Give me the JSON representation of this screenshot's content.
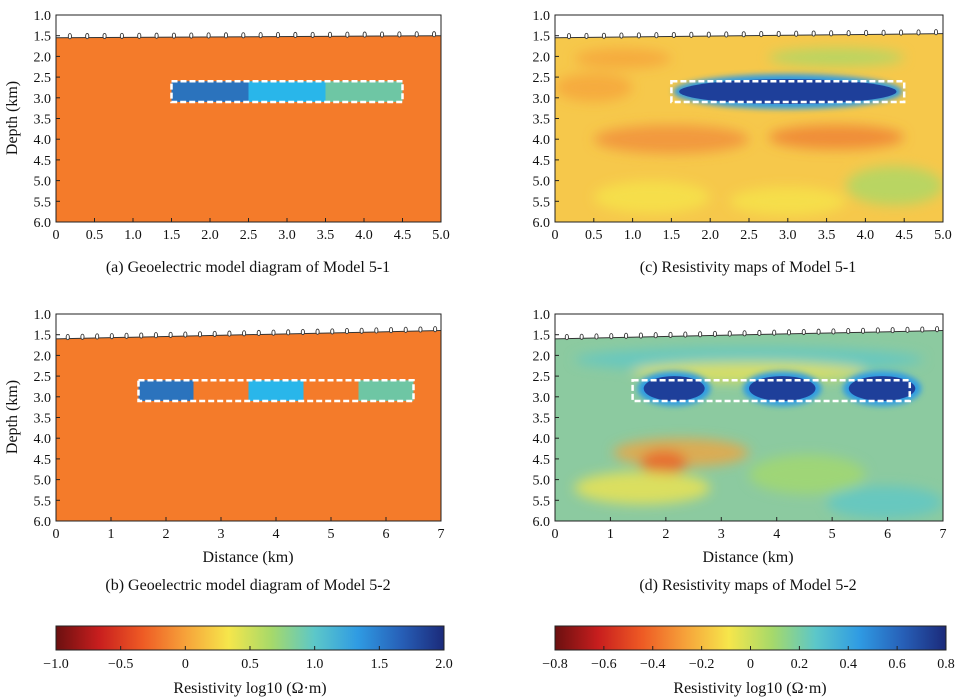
{
  "figure": {
    "charts": [
      {
        "id": "a",
        "type": "heatmap",
        "caption": "(a) Geoelectric model diagram of Model 5-1",
        "ylabel": "Depth (km)",
        "xlabel": "",
        "xlim": [
          0,
          5.0
        ],
        "ylim": [
          1.0,
          6.0
        ],
        "xticks": [
          "0",
          "0.5",
          "1.0",
          "1.5",
          "2.0",
          "2.5",
          "3.0",
          "3.5",
          "4.0",
          "4.5",
          "5.0"
        ],
        "yticks": [
          "1.0",
          "1.5",
          "2.0",
          "2.5",
          "3.0",
          "3.5",
          "4.0",
          "4.5",
          "5.0",
          "5.5",
          "6.0"
        ],
        "background_color": "#f47b2a",
        "surface_depth": [
          1.55,
          1.5
        ],
        "blocks": [
          {
            "x": [
              1.5,
              2.5
            ],
            "depth": [
              2.6,
              3.1
            ],
            "color": "#2b73bd"
          },
          {
            "x": [
              2.5,
              3.5
            ],
            "depth": [
              2.6,
              3.1
            ],
            "color": "#29b6ea"
          },
          {
            "x": [
              3.5,
              4.5
            ],
            "depth": [
              2.6,
              3.1
            ],
            "color": "#6ec6a4"
          }
        ],
        "dashed_box": {
          "x": [
            1.5,
            4.5
          ],
          "depth": [
            2.6,
            3.1
          ]
        }
      },
      {
        "id": "b",
        "type": "heatmap",
        "caption": "(b) Geoelectric model diagram of Model 5-2",
        "ylabel": "Depth (km)",
        "xlabel": "Distance (km)",
        "xlim": [
          0,
          7
        ],
        "ylim": [
          1.0,
          6.0
        ],
        "xticks": [
          "0",
          "1",
          "2",
          "3",
          "4",
          "5",
          "6",
          "7"
        ],
        "yticks": [
          "1.0",
          "1.5",
          "2.0",
          "2.5",
          "3.0",
          "3.5",
          "4.0",
          "4.5",
          "5.0",
          "5.5",
          "6.0"
        ],
        "background_color": "#f47b2a",
        "surface_depth": [
          1.6,
          1.4
        ],
        "blocks": [
          {
            "x": [
              1.5,
              2.5
            ],
            "depth": [
              2.6,
              3.1
            ],
            "color": "#2b73bd"
          },
          {
            "x": [
              3.5,
              4.5
            ],
            "depth": [
              2.6,
              3.1
            ],
            "color": "#29b6ea"
          },
          {
            "x": [
              5.5,
              6.5
            ],
            "depth": [
              2.6,
              3.1
            ],
            "color": "#6ec6a4"
          }
        ],
        "dashed_box": {
          "x": [
            1.5,
            6.5
          ],
          "depth": [
            2.6,
            3.1
          ]
        }
      },
      {
        "id": "c",
        "type": "heatmap",
        "caption": "(c) Resistivity maps of Model 5-1",
        "ylabel": "",
        "xlabel": "",
        "xlim": [
          0,
          5.0
        ],
        "ylim": [
          1.0,
          6.0
        ],
        "xticks": [
          "0",
          "0.5",
          "1.0",
          "1.5",
          "2.0",
          "2.5",
          "3.0",
          "3.5",
          "4.0",
          "4.5",
          "5.0"
        ],
        "yticks": [
          "1.0",
          "1.5",
          "2.0",
          "2.5",
          "3.0",
          "3.5",
          "4.0",
          "4.5",
          "5.0",
          "5.5",
          "6.0"
        ],
        "background_color": "#f6c84b",
        "surface_depth": [
          1.55,
          1.45
        ],
        "anomalies": [
          {
            "x": [
              1.6,
              4.4
            ],
            "depth": [
              2.55,
              3.15
            ],
            "color": "#1e3f9a"
          }
        ],
        "dashed_box": {
          "x": [
            1.5,
            4.5
          ],
          "depth": [
            2.6,
            3.1
          ]
        }
      },
      {
        "id": "d",
        "type": "heatmap",
        "caption": "(d) Resistivity maps of Model 5-2",
        "ylabel": "",
        "xlabel": "Distance (km)",
        "xlim": [
          0,
          7
        ],
        "ylim": [
          1.0,
          6.0
        ],
        "xticks": [
          "0",
          "1",
          "2",
          "3",
          "4",
          "5",
          "6",
          "7"
        ],
        "yticks": [
          "1.0",
          "1.5",
          "2.0",
          "2.5",
          "3.0",
          "3.5",
          "4.0",
          "4.5",
          "5.0",
          "5.5",
          "6.0"
        ],
        "background_color": "#8ccaa0",
        "surface_depth": [
          1.6,
          1.4
        ],
        "anomalies": [
          {
            "x": [
              1.6,
              2.7
            ],
            "depth": [
              2.5,
              3.1
            ],
            "color": "#1e3f9a"
          },
          {
            "x": [
              3.5,
              4.7
            ],
            "depth": [
              2.5,
              3.1
            ],
            "color": "#1e3f9a"
          },
          {
            "x": [
              5.3,
              6.5
            ],
            "depth": [
              2.5,
              3.1
            ],
            "color": "#1e3f9a"
          }
        ],
        "dashed_box": {
          "x": [
            1.4,
            6.4
          ],
          "depth": [
            2.6,
            3.1
          ]
        }
      }
    ]
  },
  "colorbars": [
    {
      "id": "left",
      "label": "Resistivity log10 (Ω·m)",
      "range": [
        -1.0,
        2.0
      ],
      "ticks": [
        "−1.0",
        "−0.5",
        "0",
        "0.5",
        "1.0",
        "1.5",
        "2.0"
      ],
      "tick_values": [
        -1.0,
        -0.5,
        0,
        0.5,
        1.0,
        1.5,
        2.0
      ]
    },
    {
      "id": "right",
      "label": "Resistivity log10 (Ω·m)",
      "range": [
        -0.8,
        0.8
      ],
      "ticks": [
        "−0.8",
        "−0.6",
        "−0.4",
        "−0.2",
        "0",
        "0.2",
        "0.4",
        "0.6",
        "0.8"
      ],
      "tick_values": [
        -0.8,
        -0.6,
        -0.4,
        -0.2,
        0,
        0.2,
        0.4,
        0.6,
        0.8
      ]
    }
  ],
  "colormap": [
    "#6b1010",
    "#c81e1e",
    "#ee5a24",
    "#f6a23a",
    "#f6e64b",
    "#a6d96a",
    "#5cc7c9",
    "#2f9be3",
    "#2760b8",
    "#1b2a7a"
  ]
}
